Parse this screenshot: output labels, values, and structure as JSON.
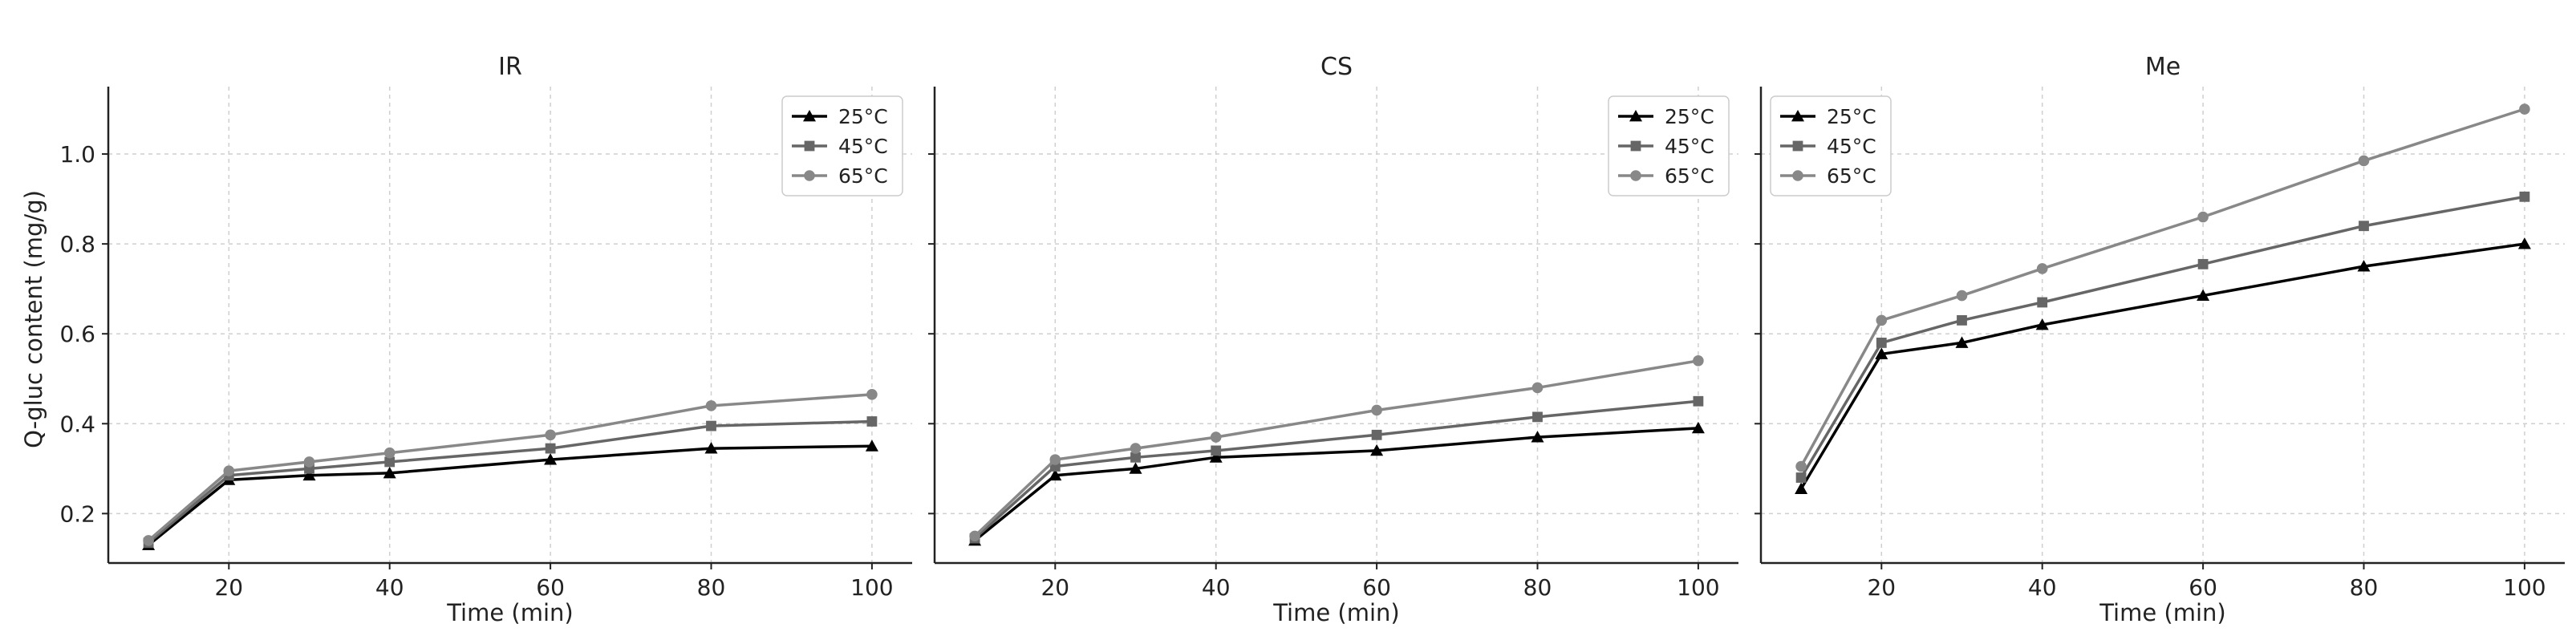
{
  "figure": {
    "ylabel": "Q-gluc content (mg/g)"
  },
  "colors": {
    "25°C": "#000000",
    "45°C": "#666666",
    "65°C": "#888888"
  },
  "chart_data": [
    {
      "type": "line",
      "title": "IR",
      "xlabel": "Time (min)",
      "ylabel": "Q-gluc content (mg/g)",
      "x": [
        10,
        20,
        30,
        40,
        60,
        80,
        100
      ],
      "xticks": [
        "20",
        "40",
        "60",
        "80",
        "100"
      ],
      "yticks": [
        "0.2",
        "0.4",
        "0.6",
        "0.8",
        "1.0"
      ],
      "xlim": [
        5,
        105
      ],
      "ylim": [
        0.09,
        1.15
      ],
      "grid": true,
      "legend": "top-right",
      "series": [
        {
          "name": "25°C",
          "marker": "triangle",
          "values": [
            0.13,
            0.275,
            0.285,
            0.29,
            0.32,
            0.345,
            0.35
          ]
        },
        {
          "name": "45°C",
          "marker": "square",
          "values": [
            0.135,
            0.285,
            0.3,
            0.315,
            0.345,
            0.395,
            0.405
          ]
        },
        {
          "name": "65°C",
          "marker": "circle",
          "values": [
            0.14,
            0.295,
            0.315,
            0.335,
            0.375,
            0.44,
            0.465
          ]
        }
      ]
    },
    {
      "type": "line",
      "title": "CS",
      "xlabel": "Time (min)",
      "ylabel": "",
      "x": [
        10,
        20,
        30,
        40,
        60,
        80,
        100
      ],
      "xticks": [
        "20",
        "40",
        "60",
        "80",
        "100"
      ],
      "yticks": [],
      "xlim": [
        5,
        105
      ],
      "ylim": [
        0.09,
        1.15
      ],
      "grid": true,
      "legend": "top-right",
      "series": [
        {
          "name": "25°C",
          "marker": "triangle",
          "values": [
            0.14,
            0.285,
            0.3,
            0.325,
            0.34,
            0.37,
            0.39
          ]
        },
        {
          "name": "45°C",
          "marker": "square",
          "values": [
            0.145,
            0.305,
            0.325,
            0.34,
            0.375,
            0.415,
            0.45
          ]
        },
        {
          "name": "65°C",
          "marker": "circle",
          "values": [
            0.15,
            0.32,
            0.345,
            0.37,
            0.43,
            0.48,
            0.54
          ]
        }
      ]
    },
    {
      "type": "line",
      "title": "Me",
      "xlabel": "Time (min)",
      "ylabel": "",
      "x": [
        10,
        20,
        30,
        40,
        60,
        80,
        100
      ],
      "xticks": [
        "20",
        "40",
        "60",
        "80",
        "100"
      ],
      "yticks": [],
      "xlim": [
        5,
        105
      ],
      "ylim": [
        0.09,
        1.15
      ],
      "grid": true,
      "legend": "top-left",
      "series": [
        {
          "name": "25°C",
          "marker": "triangle",
          "values": [
            0.255,
            0.555,
            0.58,
            0.62,
            0.685,
            0.75,
            0.8
          ]
        },
        {
          "name": "45°C",
          "marker": "square",
          "values": [
            0.28,
            0.58,
            0.63,
            0.67,
            0.755,
            0.84,
            0.905
          ]
        },
        {
          "name": "65°C",
          "marker": "circle",
          "values": [
            0.305,
            0.63,
            0.685,
            0.745,
            0.86,
            0.985,
            1.1
          ]
        }
      ]
    }
  ]
}
